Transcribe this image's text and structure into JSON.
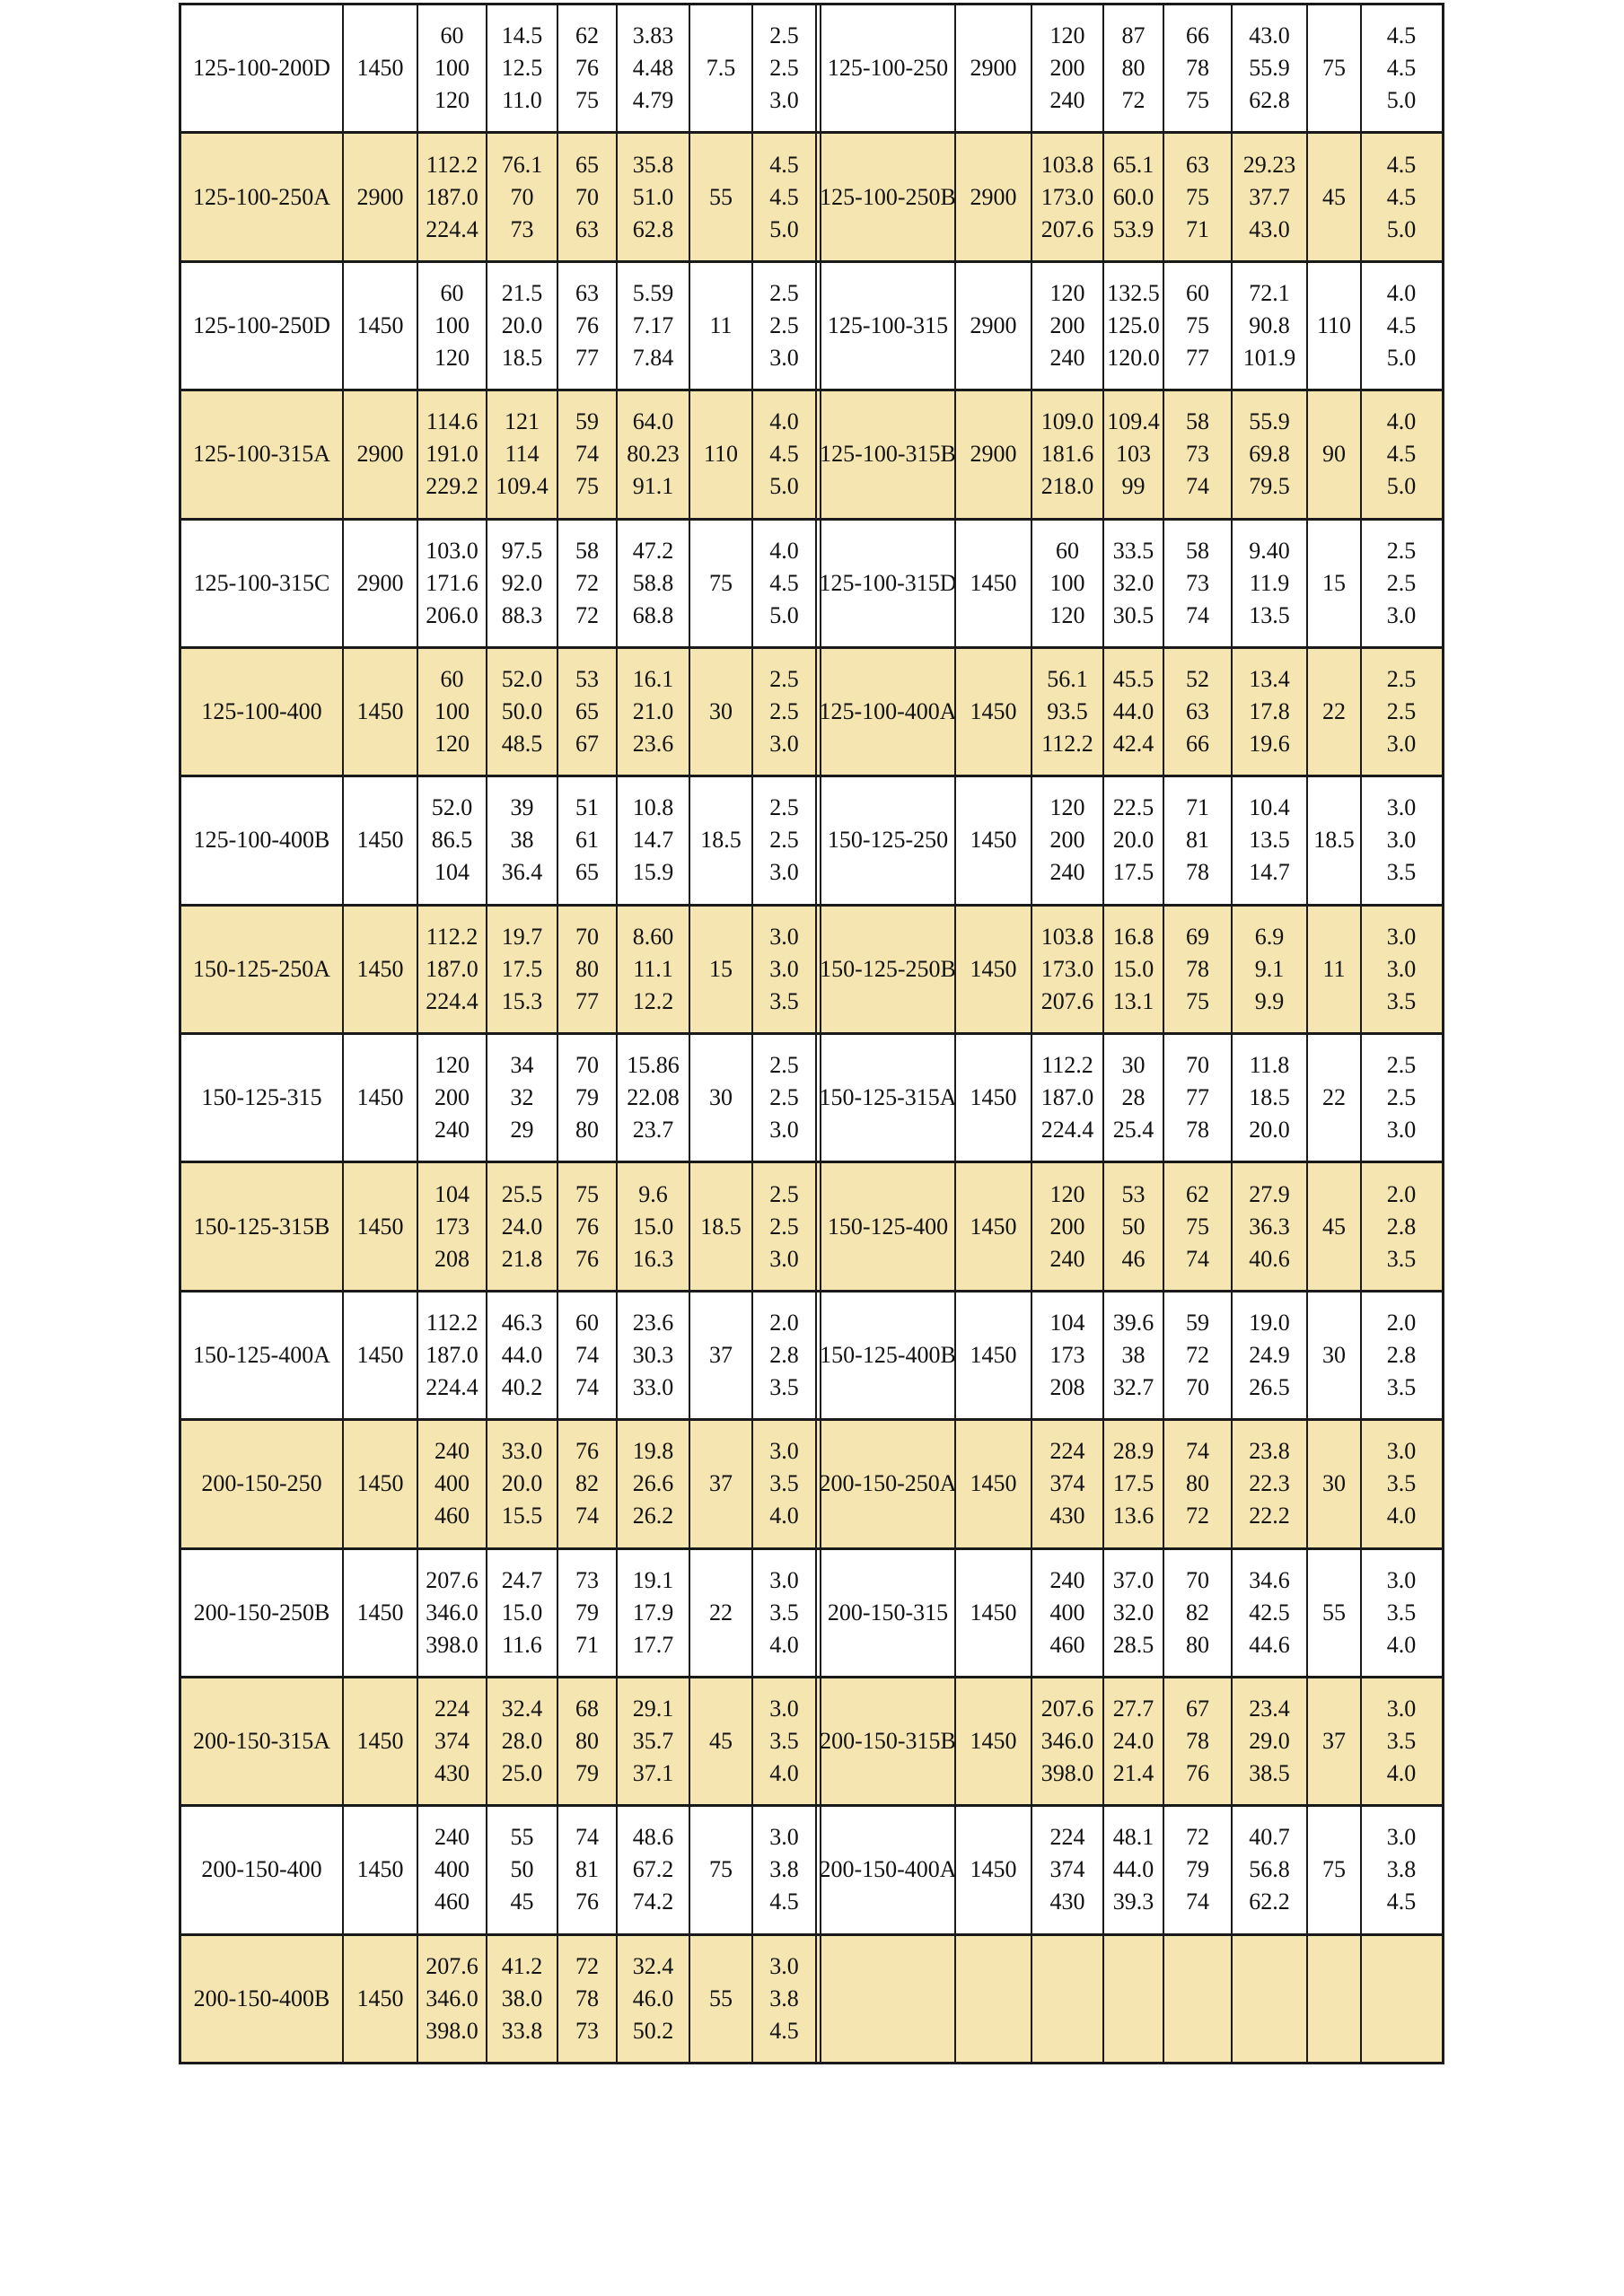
{
  "colors": {
    "row_alt_bg": "#F5E5B0",
    "border": "#1a1a1a",
    "text": "#111111"
  },
  "table": {
    "rows": [
      {
        "left": {
          "model": "125-100-200D",
          "speed": "1450",
          "flow": [
            "60",
            "100",
            "120"
          ],
          "head": [
            "14.5",
            "12.5",
            "11.0"
          ],
          "eff": [
            "62",
            "76",
            "75"
          ],
          "power": [
            "3.83",
            "4.48",
            "4.79"
          ],
          "motor": "7.5",
          "npsh": [
            "2.5",
            "2.5",
            "3.0"
          ]
        },
        "right": {
          "model": "125-100-250",
          "speed": "2900",
          "flow": [
            "120",
            "200",
            "240"
          ],
          "head": [
            "87",
            "80",
            "72"
          ],
          "eff": [
            "66",
            "78",
            "75"
          ],
          "power": [
            "43.0",
            "55.9",
            "62.8"
          ],
          "motor": "75",
          "npsh": [
            "4.5",
            "4.5",
            "5.0"
          ]
        }
      },
      {
        "left": {
          "model": "125-100-250A",
          "speed": "2900",
          "flow": [
            "112.2",
            "187.0",
            "224.4"
          ],
          "head": [
            "76.1",
            "70",
            "73"
          ],
          "eff": [
            "65",
            "70",
            "63"
          ],
          "power": [
            "35.8",
            "51.0",
            "62.8"
          ],
          "motor": "55",
          "npsh": [
            "4.5",
            "4.5",
            "5.0"
          ]
        },
        "right": {
          "model": "125-100-250B",
          "speed": "2900",
          "flow": [
            "103.8",
            "173.0",
            "207.6"
          ],
          "head": [
            "65.1",
            "60.0",
            "53.9"
          ],
          "eff": [
            "63",
            "75",
            "71"
          ],
          "power": [
            "29.23",
            "37.7",
            "43.0"
          ],
          "motor": "45",
          "npsh": [
            "4.5",
            "4.5",
            "5.0"
          ]
        }
      },
      {
        "left": {
          "model": "125-100-250D",
          "speed": "1450",
          "flow": [
            "60",
            "100",
            "120"
          ],
          "head": [
            "21.5",
            "20.0",
            "18.5"
          ],
          "eff": [
            "63",
            "76",
            "77"
          ],
          "power": [
            "5.59",
            "7.17",
            "7.84"
          ],
          "motor": "11",
          "npsh": [
            "2.5",
            "2.5",
            "3.0"
          ]
        },
        "right": {
          "model": "125-100-315",
          "speed": "2900",
          "flow": [
            "120",
            "200",
            "240"
          ],
          "head": [
            "132.5",
            "125.0",
            "120.0"
          ],
          "eff": [
            "60",
            "75",
            "77"
          ],
          "power": [
            "72.1",
            "90.8",
            "101.9"
          ],
          "motor": "110",
          "npsh": [
            "4.0",
            "4.5",
            "5.0"
          ]
        }
      },
      {
        "left": {
          "model": "125-100-315A",
          "speed": "2900",
          "flow": [
            "114.6",
            "191.0",
            "229.2"
          ],
          "head": [
            "121",
            "114",
            "109.4"
          ],
          "eff": [
            "59",
            "74",
            "75"
          ],
          "power": [
            "64.0",
            "80.23",
            "91.1"
          ],
          "motor": "110",
          "npsh": [
            "4.0",
            "4.5",
            "5.0"
          ]
        },
        "right": {
          "model": "125-100-315B",
          "speed": "2900",
          "flow": [
            "109.0",
            "181.6",
            "218.0"
          ],
          "head": [
            "109.4",
            "103",
            "99"
          ],
          "eff": [
            "58",
            "73",
            "74"
          ],
          "power": [
            "55.9",
            "69.8",
            "79.5"
          ],
          "motor": "90",
          "npsh": [
            "4.0",
            "4.5",
            "5.0"
          ]
        }
      },
      {
        "left": {
          "model": "125-100-315C",
          "speed": "2900",
          "flow": [
            "103.0",
            "171.6",
            "206.0"
          ],
          "head": [
            "97.5",
            "92.0",
            "88.3"
          ],
          "eff": [
            "58",
            "72",
            "72"
          ],
          "power": [
            "47.2",
            "58.8",
            "68.8"
          ],
          "motor": "75",
          "npsh": [
            "4.0",
            "4.5",
            "5.0"
          ]
        },
        "right": {
          "model": "125-100-315D",
          "speed": "1450",
          "flow": [
            "60",
            "100",
            "120"
          ],
          "head": [
            "33.5",
            "32.0",
            "30.5"
          ],
          "eff": [
            "58",
            "73",
            "74"
          ],
          "power": [
            "9.40",
            "11.9",
            "13.5"
          ],
          "motor": "15",
          "npsh": [
            "2.5",
            "2.5",
            "3.0"
          ]
        }
      },
      {
        "left": {
          "model": "125-100-400",
          "speed": "1450",
          "flow": [
            "60",
            "100",
            "120"
          ],
          "head": [
            "52.0",
            "50.0",
            "48.5"
          ],
          "eff": [
            "53",
            "65",
            "67"
          ],
          "power": [
            "16.1",
            "21.0",
            "23.6"
          ],
          "motor": "30",
          "npsh": [
            "2.5",
            "2.5",
            "3.0"
          ]
        },
        "right": {
          "model": "125-100-400A",
          "speed": "1450",
          "flow": [
            "56.1",
            "93.5",
            "112.2"
          ],
          "head": [
            "45.5",
            "44.0",
            "42.4"
          ],
          "eff": [
            "52",
            "63",
            "66"
          ],
          "power": [
            "13.4",
            "17.8",
            "19.6"
          ],
          "motor": "22",
          "npsh": [
            "2.5",
            "2.5",
            "3.0"
          ]
        }
      },
      {
        "left": {
          "model": "125-100-400B",
          "speed": "1450",
          "flow": [
            "52.0",
            "86.5",
            "104"
          ],
          "head": [
            "39",
            "38",
            "36.4"
          ],
          "eff": [
            "51",
            "61",
            "65"
          ],
          "power": [
            "10.8",
            "14.7",
            "15.9"
          ],
          "motor": "18.5",
          "npsh": [
            "2.5",
            "2.5",
            "3.0"
          ]
        },
        "right": {
          "model": "150-125-250",
          "speed": "1450",
          "flow": [
            "120",
            "200",
            "240"
          ],
          "head": [
            "22.5",
            "20.0",
            "17.5"
          ],
          "eff": [
            "71",
            "81",
            "78"
          ],
          "power": [
            "10.4",
            "13.5",
            "14.7"
          ],
          "motor": "18.5",
          "npsh": [
            "3.0",
            "3.0",
            "3.5"
          ]
        }
      },
      {
        "left": {
          "model": "150-125-250A",
          "speed": "1450",
          "flow": [
            "112.2",
            "187.0",
            "224.4"
          ],
          "head": [
            "19.7",
            "17.5",
            "15.3"
          ],
          "eff": [
            "70",
            "80",
            "77"
          ],
          "power": [
            "8.60",
            "11.1",
            "12.2"
          ],
          "motor": "15",
          "npsh": [
            "3.0",
            "3.0",
            "3.5"
          ]
        },
        "right": {
          "model": "150-125-250B",
          "speed": "1450",
          "flow": [
            "103.8",
            "173.0",
            "207.6"
          ],
          "head": [
            "16.8",
            "15.0",
            "13.1"
          ],
          "eff": [
            "69",
            "78",
            "75"
          ],
          "power": [
            "6.9",
            "9.1",
            "9.9"
          ],
          "motor": "11",
          "npsh": [
            "3.0",
            "3.0",
            "3.5"
          ]
        }
      },
      {
        "left": {
          "model": "150-125-315",
          "speed": "1450",
          "flow": [
            "120",
            "200",
            "240"
          ],
          "head": [
            "34",
            "32",
            "29"
          ],
          "eff": [
            "70",
            "79",
            "80"
          ],
          "power": [
            "15.86",
            "22.08",
            "23.7"
          ],
          "motor": "30",
          "npsh": [
            "2.5",
            "2.5",
            "3.0"
          ]
        },
        "right": {
          "model": "150-125-315A",
          "speed": "1450",
          "flow": [
            "112.2",
            "187.0",
            "224.4"
          ],
          "head": [
            "30",
            "28",
            "25.4"
          ],
          "eff": [
            "70",
            "77",
            "78"
          ],
          "power": [
            "11.8",
            "18.5",
            "20.0"
          ],
          "motor": "22",
          "npsh": [
            "2.5",
            "2.5",
            "3.0"
          ]
        }
      },
      {
        "left": {
          "model": "150-125-315B",
          "speed": "1450",
          "flow": [
            "104",
            "173",
            "208"
          ],
          "head": [
            "25.5",
            "24.0",
            "21.8"
          ],
          "eff": [
            "75",
            "76",
            "76"
          ],
          "power": [
            "9.6",
            "15.0",
            "16.3"
          ],
          "motor": "18.5",
          "npsh": [
            "2.5",
            "2.5",
            "3.0"
          ]
        },
        "right": {
          "model": "150-125-400",
          "speed": "1450",
          "flow": [
            "120",
            "200",
            "240"
          ],
          "head": [
            "53",
            "50",
            "46"
          ],
          "eff": [
            "62",
            "75",
            "74"
          ],
          "power": [
            "27.9",
            "36.3",
            "40.6"
          ],
          "motor": "45",
          "npsh": [
            "2.0",
            "2.8",
            "3.5"
          ]
        }
      },
      {
        "left": {
          "model": "150-125-400A",
          "speed": "1450",
          "flow": [
            "112.2",
            "187.0",
            "224.4"
          ],
          "head": [
            "46.3",
            "44.0",
            "40.2"
          ],
          "eff": [
            "60",
            "74",
            "74"
          ],
          "power": [
            "23.6",
            "30.3",
            "33.0"
          ],
          "motor": "37",
          "npsh": [
            "2.0",
            "2.8",
            "3.5"
          ]
        },
        "right": {
          "model": "150-125-400B",
          "speed": "1450",
          "flow": [
            "104",
            "173",
            "208"
          ],
          "head": [
            "39.6",
            "38",
            "32.7"
          ],
          "eff": [
            "59",
            "72",
            "70"
          ],
          "power": [
            "19.0",
            "24.9",
            "26.5"
          ],
          "motor": "30",
          "npsh": [
            "2.0",
            "2.8",
            "3.5"
          ]
        }
      },
      {
        "left": {
          "model": "200-150-250",
          "speed": "1450",
          "flow": [
            "240",
            "400",
            "460"
          ],
          "head": [
            "33.0",
            "20.0",
            "15.5"
          ],
          "eff": [
            "76",
            "82",
            "74"
          ],
          "power": [
            "19.8",
            "26.6",
            "26.2"
          ],
          "motor": "37",
          "npsh": [
            "3.0",
            "3.5",
            "4.0"
          ]
        },
        "right": {
          "model": "200-150-250A",
          "speed": "1450",
          "flow": [
            "224",
            "374",
            "430"
          ],
          "head": [
            "28.9",
            "17.5",
            "13.6"
          ],
          "eff": [
            "74",
            "80",
            "72"
          ],
          "power": [
            "23.8",
            "22.3",
            "22.2"
          ],
          "motor": "30",
          "npsh": [
            "3.0",
            "3.5",
            "4.0"
          ]
        }
      },
      {
        "left": {
          "model": "200-150-250B",
          "speed": "1450",
          "flow": [
            "207.6",
            "346.0",
            "398.0"
          ],
          "head": [
            "24.7",
            "15.0",
            "11.6"
          ],
          "eff": [
            "73",
            "79",
            "71"
          ],
          "power": [
            "19.1",
            "17.9",
            "17.7"
          ],
          "motor": "22",
          "npsh": [
            "3.0",
            "3.5",
            "4.0"
          ]
        },
        "right": {
          "model": "200-150-315",
          "speed": "1450",
          "flow": [
            "240",
            "400",
            "460"
          ],
          "head": [
            "37.0",
            "32.0",
            "28.5"
          ],
          "eff": [
            "70",
            "82",
            "80"
          ],
          "power": [
            "34.6",
            "42.5",
            "44.6"
          ],
          "motor": "55",
          "npsh": [
            "3.0",
            "3.5",
            "4.0"
          ]
        }
      },
      {
        "left": {
          "model": "200-150-315A",
          "speed": "1450",
          "flow": [
            "224",
            "374",
            "430"
          ],
          "head": [
            "32.4",
            "28.0",
            "25.0"
          ],
          "eff": [
            "68",
            "80",
            "79"
          ],
          "power": [
            "29.1",
            "35.7",
            "37.1"
          ],
          "motor": "45",
          "npsh": [
            "3.0",
            "3.5",
            "4.0"
          ]
        },
        "right": {
          "model": "200-150-315B",
          "speed": "1450",
          "flow": [
            "207.6",
            "346.0",
            "398.0"
          ],
          "head": [
            "27.7",
            "24.0",
            "21.4"
          ],
          "eff": [
            "67",
            "78",
            "76"
          ],
          "power": [
            "23.4",
            "29.0",
            "38.5"
          ],
          "motor": "37",
          "npsh": [
            "3.0",
            "3.5",
            "4.0"
          ]
        }
      },
      {
        "left": {
          "model": "200-150-400",
          "speed": "1450",
          "flow": [
            "240",
            "400",
            "460"
          ],
          "head": [
            "55",
            "50",
            "45"
          ],
          "eff": [
            "74",
            "81",
            "76"
          ],
          "power": [
            "48.6",
            "67.2",
            "74.2"
          ],
          "motor": "75",
          "npsh": [
            "3.0",
            "3.8",
            "4.5"
          ]
        },
        "right": {
          "model": "200-150-400A",
          "speed": "1450",
          "flow": [
            "224",
            "374",
            "430"
          ],
          "head": [
            "48.1",
            "44.0",
            "39.3"
          ],
          "eff": [
            "72",
            "79",
            "74"
          ],
          "power": [
            "40.7",
            "56.8",
            "62.2"
          ],
          "motor": "75",
          "npsh": [
            "3.0",
            "3.8",
            "4.5"
          ]
        }
      },
      {
        "left": {
          "model": "200-150-400B",
          "speed": "1450",
          "flow": [
            "207.6",
            "346.0",
            "398.0"
          ],
          "head": [
            "41.2",
            "38.0",
            "33.8"
          ],
          "eff": [
            "72",
            "78",
            "73"
          ],
          "power": [
            "32.4",
            "46.0",
            "50.2"
          ],
          "motor": "55",
          "npsh": [
            "3.0",
            "3.8",
            "4.5"
          ]
        },
        "right": {
          "model": "",
          "speed": "",
          "flow": [
            "",
            "",
            ""
          ],
          "head": [
            "",
            "",
            ""
          ],
          "eff": [
            "",
            "",
            ""
          ],
          "power": [
            "",
            "",
            ""
          ],
          "motor": "",
          "npsh": [
            "",
            "",
            ""
          ]
        }
      }
    ]
  }
}
